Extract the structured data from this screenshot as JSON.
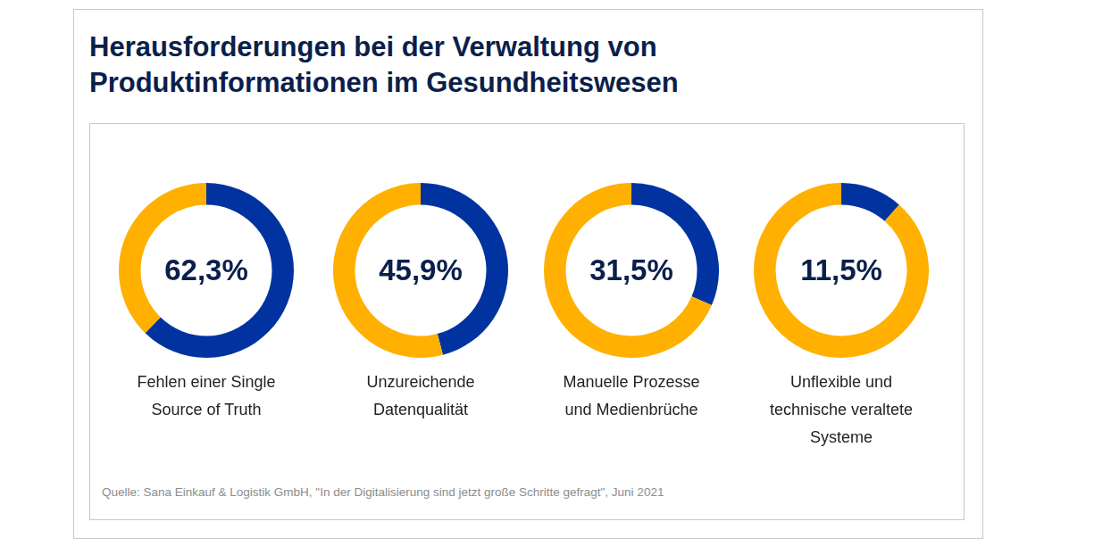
{
  "title": [
    "Herausforderungen bei der Verwaltung von",
    "Produktinformationen im Gesundheitswesen"
  ],
  "source": "Quelle: Sana Einkauf & Logistik GmbH, \"In der Digitalisierung sind jetzt große Schritte gefragt\", Juni 2021",
  "chart_data": [
    {
      "type": "doughnut",
      "title": [
        "Fehlen einer Single",
        "Source of Truth"
      ],
      "values": [
        62.3,
        37.7
      ],
      "value_labels": [
        "62,3%",
        null
      ],
      "colors": [
        "#0033a0",
        "#ffb000"
      ]
    },
    {
      "type": "doughnut",
      "title": [
        "Unzureichende",
        "Datenqualität"
      ],
      "values": [
        45.9,
        54.1
      ],
      "value_labels": [
        "45,9%",
        null
      ],
      "colors": [
        "#0033a0",
        "#ffb000"
      ]
    },
    {
      "type": "doughnut",
      "title": [
        "Manuelle Prozesse",
        "und Medienbrüche"
      ],
      "values": [
        31.5,
        68.5
      ],
      "value_labels": [
        "31,5%",
        null
      ],
      "colors": [
        "#0033a0",
        "#ffb000"
      ]
    },
    {
      "type": "doughnut",
      "title": [
        "Unflexible und",
        "technische veraltete",
        "Systeme"
      ],
      "values": [
        11.5,
        88.5
      ],
      "value_labels": [
        "11,5%",
        null
      ],
      "colors": [
        "#0033a0",
        "#ffb000"
      ]
    }
  ]
}
